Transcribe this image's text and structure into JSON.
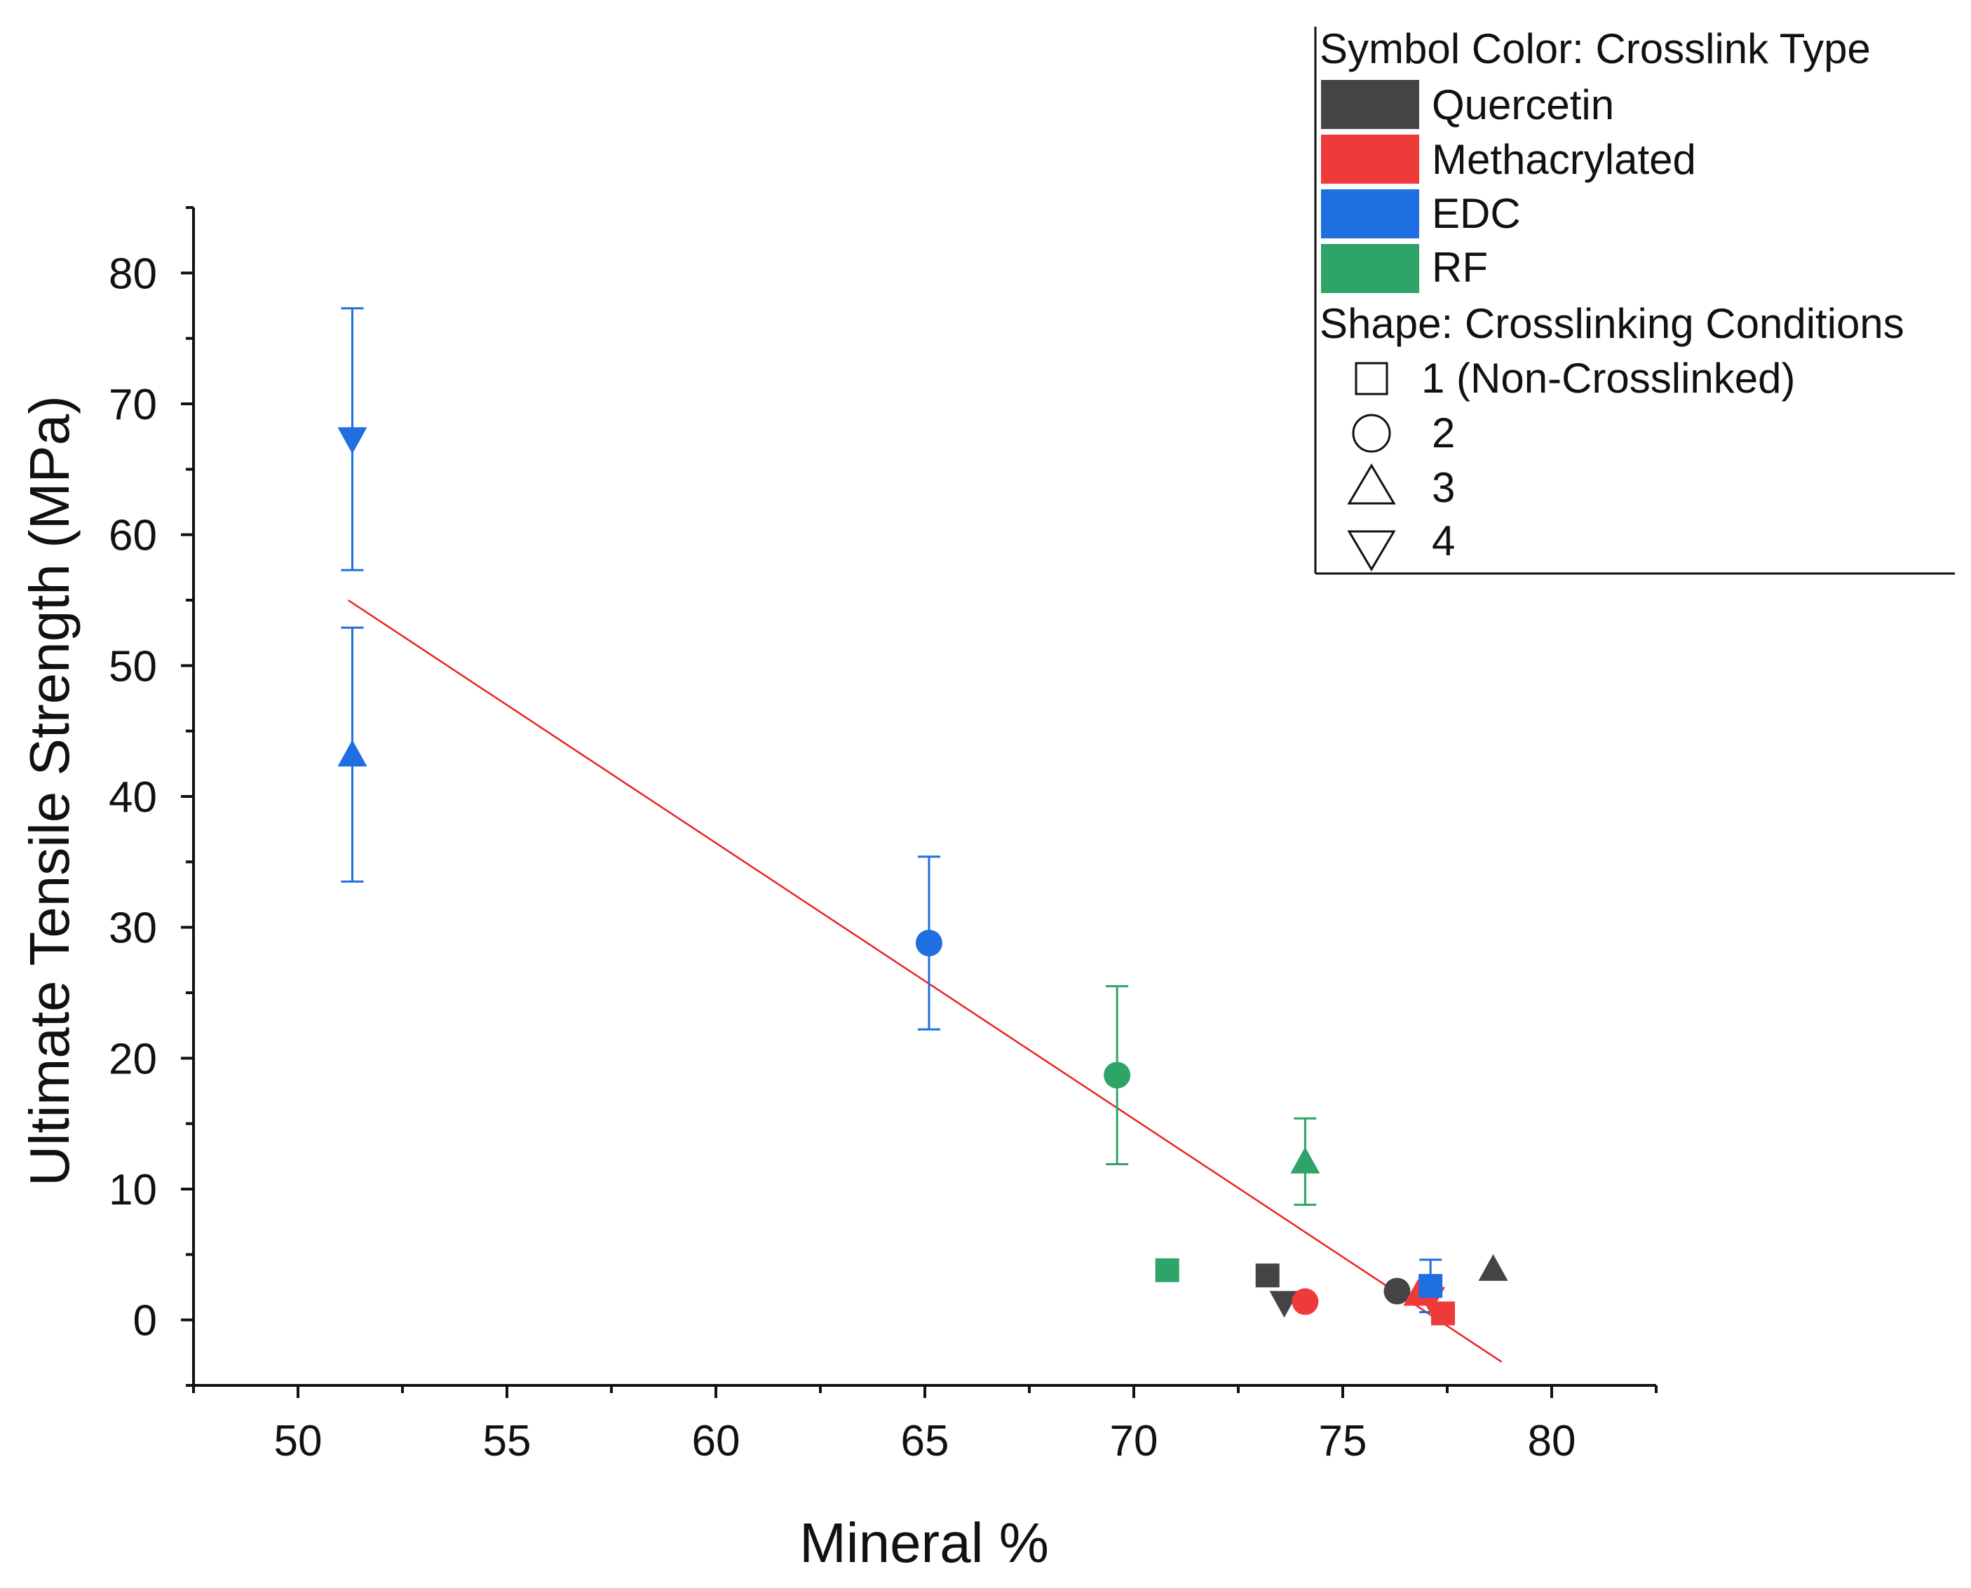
{
  "chart_data": {
    "type": "scatter",
    "xlabel": "Mineral %",
    "ylabel": "Ultimate Tensile Strength (MPa)",
    "xlim": [
      47.5,
      82.5
    ],
    "ylim": [
      -5,
      85
    ],
    "x_ticks": [
      "50",
      "55",
      "60",
      "65",
      "70",
      "75",
      "80"
    ],
    "y_ticks": [
      "0",
      "10",
      "20",
      "30",
      "40",
      "50",
      "60",
      "70",
      "80"
    ],
    "x_tick_values": [
      50,
      55,
      60,
      65,
      70,
      75,
      80
    ],
    "y_tick_values": [
      0,
      10,
      20,
      30,
      40,
      50,
      60,
      70,
      80
    ],
    "grid": false,
    "legend": {
      "placement": "top-right",
      "color_title": "Symbol Color:  Crosslink Type",
      "color_entries": [
        {
          "label": "Quercetin",
          "color": "#444444"
        },
        {
          "label": "Methacrylated",
          "color": "#ef3a3a"
        },
        {
          "label": "EDC",
          "color": "#1f6fe0"
        },
        {
          "label": "RF",
          "color": "#2ea468"
        }
      ],
      "shape_title": "Shape:  Crosslinking Conditions",
      "shape_entries": [
        {
          "label": "1 (Non-Crosslinked)",
          "shape": "square"
        },
        {
          "label": "2",
          "shape": "circle"
        },
        {
          "label": "3",
          "shape": "triangle-up"
        },
        {
          "label": "4",
          "shape": "triangle-down"
        }
      ]
    },
    "points": [
      {
        "crosslink": "EDC",
        "condition": 4,
        "x": 51.3,
        "y": 67.3,
        "err": 10.0
      },
      {
        "crosslink": "EDC",
        "condition": 3,
        "x": 51.3,
        "y": 43.2,
        "err": 9.7
      },
      {
        "crosslink": "EDC",
        "condition": 2,
        "x": 65.1,
        "y": 28.8,
        "err": 6.6
      },
      {
        "crosslink": "RF",
        "condition": 2,
        "x": 69.6,
        "y": 18.7,
        "err": 6.8
      },
      {
        "crosslink": "RF",
        "condition": 3,
        "x": 74.1,
        "y": 12.1,
        "err": 3.3
      },
      {
        "crosslink": "RF",
        "condition": 1,
        "x": 70.8,
        "y": 3.8,
        "err": 0
      },
      {
        "crosslink": "Quercetin",
        "condition": 1,
        "x": 73.2,
        "y": 3.4,
        "err": 0
      },
      {
        "crosslink": "Quercetin",
        "condition": 4,
        "x": 73.6,
        "y": 1.3,
        "err": 0
      },
      {
        "crosslink": "Quercetin",
        "condition": 2,
        "x": 76.3,
        "y": 2.2,
        "err": 0
      },
      {
        "crosslink": "Quercetin",
        "condition": 3,
        "x": 78.6,
        "y": 3.9,
        "err": 0
      },
      {
        "crosslink": "Methacrylated",
        "condition": 2,
        "x": 74.1,
        "y": 1.4,
        "err": 0
      },
      {
        "crosslink": "Methacrylated",
        "condition": 3,
        "x": 76.8,
        "y": 2.0,
        "err": 0
      },
      {
        "crosslink": "Methacrylated",
        "condition": 4,
        "x": 77.1,
        "y": 1.6,
        "err": 0
      },
      {
        "crosslink": "Methacrylated",
        "condition": 1,
        "x": 77.4,
        "y": 0.5,
        "err": 0
      },
      {
        "crosslink": "EDC",
        "condition": 1,
        "x": 77.1,
        "y": 2.6,
        "err": 2.0
      }
    ],
    "fit_line": {
      "color": "#ee2222",
      "x": [
        51.2,
        78.8
      ],
      "y": [
        55.0,
        -3.2
      ]
    }
  }
}
